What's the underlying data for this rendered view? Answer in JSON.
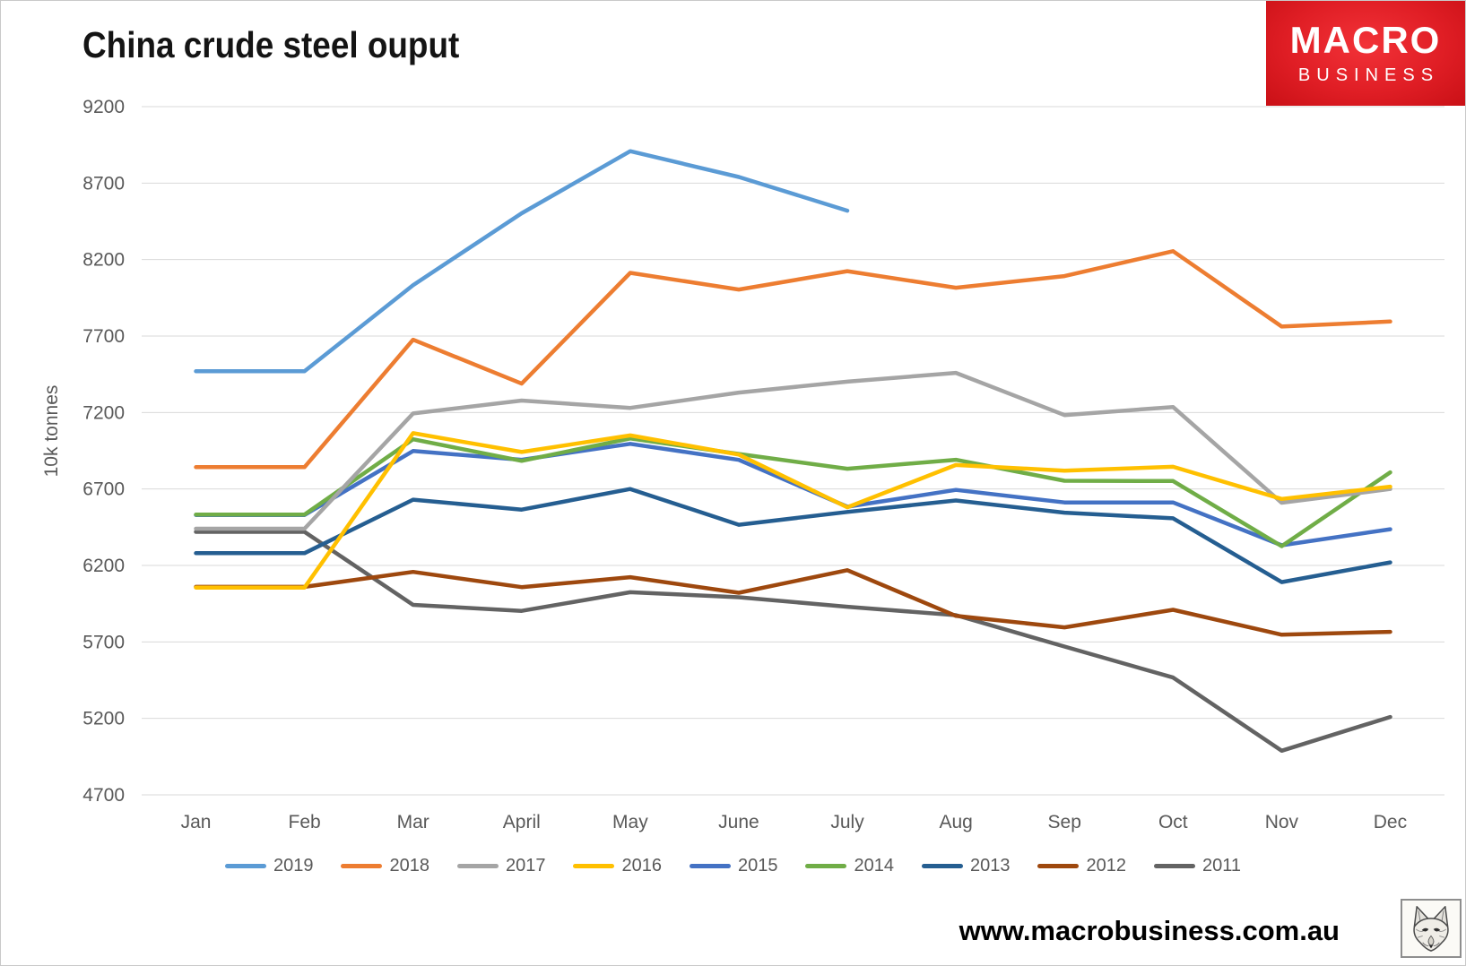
{
  "title": "China crude steel ouput",
  "logo": {
    "line1": "MACRO",
    "line2": "BUSINESS",
    "background_color": "#e01e25",
    "text_color": "#ffffff"
  },
  "footer": {
    "url": "www.macrobusiness.com.au"
  },
  "icons": {
    "bottom_right": "fox-sketch-logo"
  },
  "y_axis": {
    "title": "10k tonnes",
    "ticks": [
      9200,
      8700,
      8200,
      7700,
      7200,
      6700,
      6200,
      5700,
      5200,
      4700
    ]
  },
  "x_axis": {
    "months": [
      "Jan",
      "Feb",
      "Mar",
      "April",
      "May",
      "June",
      "July",
      "Aug",
      "Sep",
      "Oct",
      "Nov",
      "Dec"
    ]
  },
  "legend": {
    "items": [
      {
        "label": "2019",
        "color": "#5B9BD5"
      },
      {
        "label": "2018",
        "color": "#ED7D31"
      },
      {
        "label": "2017",
        "color": "#A5A5A5"
      },
      {
        "label": "2016",
        "color": "#FFC000"
      },
      {
        "label": "2015",
        "color": "#4472C4"
      },
      {
        "label": "2014",
        "color": "#70AD47"
      },
      {
        "label": "2013",
        "color": "#255E91"
      },
      {
        "label": "2012",
        "color": "#9E480E"
      },
      {
        "label": "2011",
        "color": "#636363"
      }
    ]
  },
  "chart_data": {
    "type": "line",
    "title": "China crude steel ouput",
    "xlabel": "",
    "ylabel": "10k tonnes",
    "ylim": [
      4700,
      9200
    ],
    "grid": "horizontal",
    "legend_position": "bottom",
    "categories": [
      "Jan",
      "Feb",
      "Mar",
      "April",
      "May",
      "June",
      "July",
      "Aug",
      "Sep",
      "Oct",
      "Nov",
      "Dec"
    ],
    "series": [
      {
        "name": "2011",
        "color": "#636363",
        "values": [
          6420,
          6420,
          5942,
          5903,
          6025,
          5992,
          5930,
          5875,
          5670,
          5467,
          4988,
          5209
        ]
      },
      {
        "name": "2012",
        "color": "#9E480E",
        "values": [
          6060,
          6060,
          6158,
          6058,
          6123,
          6021,
          6169,
          5870,
          5795,
          5910,
          5747,
          5766
        ]
      },
      {
        "name": "2013",
        "color": "#255E91",
        "values": [
          6280,
          6280,
          6630,
          6565,
          6700,
          6466,
          6550,
          6625,
          6545,
          6508,
          6091,
          6220
        ]
      },
      {
        "name": "2015",
        "color": "#4472C4",
        "values": [
          6530,
          6530,
          6948,
          6891,
          6995,
          6890,
          6584,
          6694,
          6612,
          6612,
          6332,
          6437
        ]
      },
      {
        "name": "2014",
        "color": "#70AD47",
        "values": [
          6533,
          6533,
          7025,
          6884,
          7030,
          6929,
          6832,
          6891,
          6754,
          6752,
          6326,
          6809
        ]
      },
      {
        "name": "2017",
        "color": "#A5A5A5",
        "values": [
          6440,
          6440,
          7194,
          7278,
          7230,
          7330,
          7402,
          7459,
          7183,
          7236,
          6610,
          6700
        ]
      },
      {
        "name": "2016",
        "color": "#FFC000",
        "values": [
          6055,
          6055,
          7065,
          6942,
          7050,
          6925,
          6580,
          6857,
          6820,
          6845,
          6635,
          6715
        ]
      },
      {
        "name": "2018",
        "color": "#ED7D31",
        "values": [
          6843,
          6843,
          7676,
          7389,
          8113,
          8004,
          8124,
          8016,
          8092,
          8255,
          7762,
          7795
        ]
      },
      {
        "name": "2019",
        "color": "#5B9BD5",
        "values": [
          7470,
          7470,
          8033,
          8503,
          8909,
          8740,
          8520,
          null,
          null,
          null,
          null,
          null
        ]
      }
    ]
  }
}
